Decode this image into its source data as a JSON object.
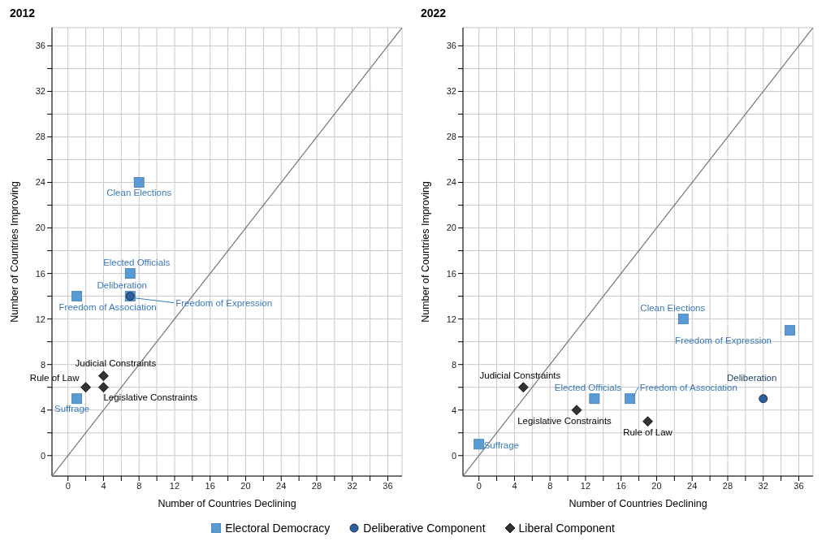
{
  "chart_data": [
    {
      "type": "scatter",
      "title": "2012",
      "xlabel": "Number of Countries Declining",
      "ylabel": "Number of Countries Improving",
      "xlim": [
        -1.8,
        37.6
      ],
      "ylim": [
        -1.8,
        37.6
      ],
      "xticks": [
        0,
        {
          "value": 2,
          "label": null
        },
        4,
        {
          "value": 6,
          "label": null
        },
        8,
        {
          "value": 10,
          "label": null
        },
        12,
        {
          "value": 14,
          "label": null
        },
        16,
        {
          "value": 18,
          "label": null
        },
        20,
        {
          "value": 22,
          "label": null
        },
        24,
        {
          "value": 26,
          "label": null
        },
        28,
        {
          "value": 30,
          "label": null
        },
        32,
        {
          "value": 34,
          "label": null
        },
        36
      ],
      "yticks": [
        0,
        {
          "value": 2,
          "label": null
        },
        4,
        {
          "value": 6,
          "label": null
        },
        8,
        {
          "value": 10,
          "label": null
        },
        12,
        {
          "value": 14,
          "label": null
        },
        16,
        {
          "value": 18,
          "label": null
        },
        20,
        {
          "value": 22,
          "label": null
        },
        24,
        {
          "value": 26,
          "label": null
        },
        28,
        {
          "value": 30,
          "label": null
        },
        32,
        {
          "value": 34,
          "label": null
        },
        36
      ],
      "grid": true,
      "legend": "bottom",
      "series": [
        {
          "type": "line",
          "color": "#777777",
          "x": [
            -1.8,
            37.6
          ],
          "values": [
            -1.8,
            37.6
          ],
          "marker": "none"
        },
        {
          "name": "Electoral Democracy",
          "color": "#5b9bd5",
          "marker": "square",
          "x": [
            8,
            7,
            1,
            7,
            1
          ],
          "values": [
            24,
            16,
            14,
            14,
            5
          ]
        },
        {
          "name": "Deliberative Component",
          "color": "#2f5f98",
          "marker": "circle",
          "x": [
            7
          ],
          "values": [
            14
          ]
        },
        {
          "name": "Liberal Component",
          "color": "#333333",
          "marker": "diamond",
          "x": [
            4,
            2,
            4
          ],
          "values": [
            7,
            6,
            6
          ]
        }
      ],
      "annotations": [
        {
          "text": "Clean Elections",
          "x": 8,
          "y": 24
        },
        {
          "text": "Elected Officials",
          "x": 7,
          "y": 16
        },
        {
          "text": "Freedom of Association",
          "x": 1,
          "y": 14
        },
        {
          "text": "Deliberation",
          "x": 7,
          "y": 14
        },
        {
          "text": "Freedom of Expression",
          "x": 7,
          "y": 14
        },
        {
          "text": "Judicial Constraints",
          "x": 4,
          "y": 7
        },
        {
          "text": "Rule of Law",
          "x": 2,
          "y": 6
        },
        {
          "text": "Legislative Constraints",
          "x": 4,
          "y": 6
        },
        {
          "text": "Suffrage",
          "x": 1,
          "y": 5
        }
      ]
    },
    {
      "type": "scatter",
      "title": "2022",
      "xlabel": "Number of Countries Declining",
      "ylabel": "Number of Countries Improving",
      "xlim": [
        -1.8,
        37.6
      ],
      "ylim": [
        -1.8,
        37.6
      ],
      "xticks": [
        0,
        {
          "value": 2,
          "label": null
        },
        4,
        {
          "value": 6,
          "label": null
        },
        8,
        {
          "value": 10,
          "label": null
        },
        12,
        {
          "value": 14,
          "label": null
        },
        16,
        {
          "value": 18,
          "label": null
        },
        20,
        {
          "value": 22,
          "label": null
        },
        24,
        {
          "value": 26,
          "label": null
        },
        28,
        {
          "value": 30,
          "label": null
        },
        32,
        {
          "value": 34,
          "label": null
        },
        36
      ],
      "yticks": [
        0,
        {
          "value": 2,
          "label": null
        },
        4,
        {
          "value": 6,
          "label": null
        },
        8,
        {
          "value": 10,
          "label": null
        },
        12,
        {
          "value": 14,
          "label": null
        },
        16,
        {
          "value": 18,
          "label": null
        },
        20,
        {
          "value": 22,
          "label": null
        },
        24,
        {
          "value": 26,
          "label": null
        },
        28,
        {
          "value": 30,
          "label": null
        },
        32,
        {
          "value": 34,
          "label": null
        },
        36
      ],
      "grid": true,
      "legend": "bottom",
      "series": [
        {
          "type": "line",
          "color": "#777777",
          "x": [
            -1.8,
            37.6
          ],
          "values": [
            -1.8,
            37.6
          ],
          "marker": "none"
        },
        {
          "name": "Electoral Democracy",
          "color": "#5b9bd5",
          "marker": "square",
          "x": [
            23,
            35,
            13,
            17,
            0
          ],
          "values": [
            12,
            11,
            5,
            5,
            1
          ]
        },
        {
          "name": "Deliberative Component",
          "color": "#2f5f98",
          "marker": "circle",
          "x": [
            32
          ],
          "values": [
            5
          ]
        },
        {
          "name": "Liberal Component",
          "color": "#333333",
          "marker": "diamond",
          "x": [
            5,
            11,
            19
          ],
          "values": [
            6,
            4,
            3
          ]
        }
      ],
      "annotations": [
        {
          "text": "Clean Elections",
          "x": 23,
          "y": 12
        },
        {
          "text": "Freedom of Expression",
          "x": 35,
          "y": 11
        },
        {
          "text": "Judicial Constraints",
          "x": 5,
          "y": 6
        },
        {
          "text": "Elected Officials",
          "x": 13,
          "y": 5
        },
        {
          "text": "Freedom of Association",
          "x": 17,
          "y": 5
        },
        {
          "text": "Deliberation",
          "x": 32,
          "y": 5
        },
        {
          "text": "Legislative Constraints",
          "x": 11,
          "y": 4
        },
        {
          "text": "Rule of Law",
          "x": 19,
          "y": 3
        },
        {
          "text": "Suffrage",
          "x": 0,
          "y": 1
        }
      ]
    }
  ]
}
